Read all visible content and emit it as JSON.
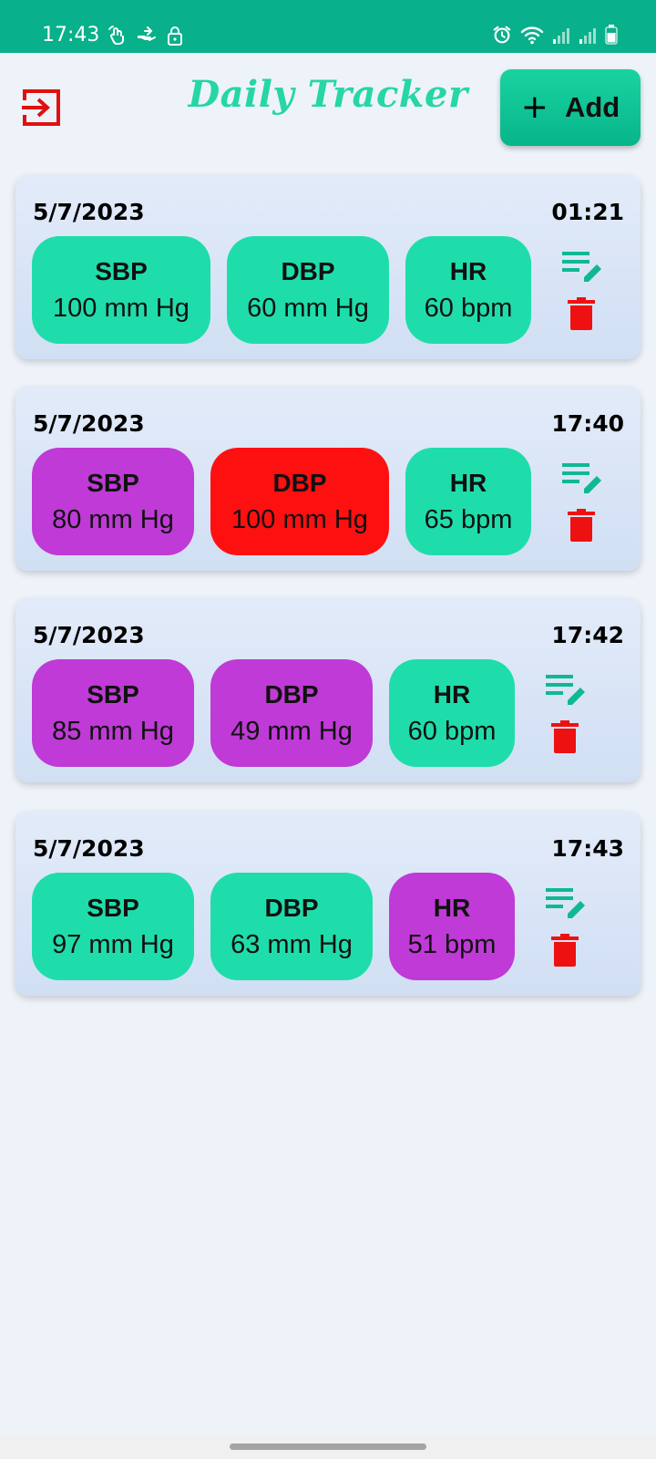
{
  "status_bar": {
    "time": "17:43",
    "left_icons": [
      "touch-icon",
      "hand-share-icon",
      "lock-icon"
    ],
    "right_icons": [
      "alarm-icon",
      "wifi-icon",
      "signal-icon",
      "signal-icon",
      "battery-icon"
    ]
  },
  "header": {
    "title": "Daily Tracker",
    "add_label": "Add",
    "title_color": "#26d6a4",
    "logout_icon_color": "#e01010"
  },
  "colors": {
    "normal": "#1fddaa",
    "low": "#bf3ad6",
    "high": "#ff1010",
    "edit_icon": "#10b892",
    "delete_icon": "#ee1111",
    "status_bar": "#08b08b"
  },
  "entries": [
    {
      "date": "5/7/2023",
      "time": "01:21",
      "readings": [
        {
          "label": "SBP",
          "value": "100 mm Hg",
          "status": "normal"
        },
        {
          "label": "DBP",
          "value": "60 mm Hg",
          "status": "normal"
        },
        {
          "label": "HR",
          "value": "60 bpm",
          "status": "normal"
        }
      ]
    },
    {
      "date": "5/7/2023",
      "time": "17:40",
      "readings": [
        {
          "label": "SBP",
          "value": "80 mm Hg",
          "status": "low"
        },
        {
          "label": "DBP",
          "value": "100 mm Hg",
          "status": "high"
        },
        {
          "label": "HR",
          "value": "65 bpm",
          "status": "normal"
        }
      ]
    },
    {
      "date": "5/7/2023",
      "time": "17:42",
      "readings": [
        {
          "label": "SBP",
          "value": "85 mm Hg",
          "status": "low"
        },
        {
          "label": "DBP",
          "value": "49 mm Hg",
          "status": "low"
        },
        {
          "label": "HR",
          "value": "60 bpm",
          "status": "normal"
        }
      ]
    },
    {
      "date": "5/7/2023",
      "time": "17:43",
      "readings": [
        {
          "label": "SBP",
          "value": "97 mm Hg",
          "status": "normal"
        },
        {
          "label": "DBP",
          "value": "63 mm Hg",
          "status": "normal"
        },
        {
          "label": "HR",
          "value": "51 bpm",
          "status": "low"
        }
      ]
    }
  ]
}
